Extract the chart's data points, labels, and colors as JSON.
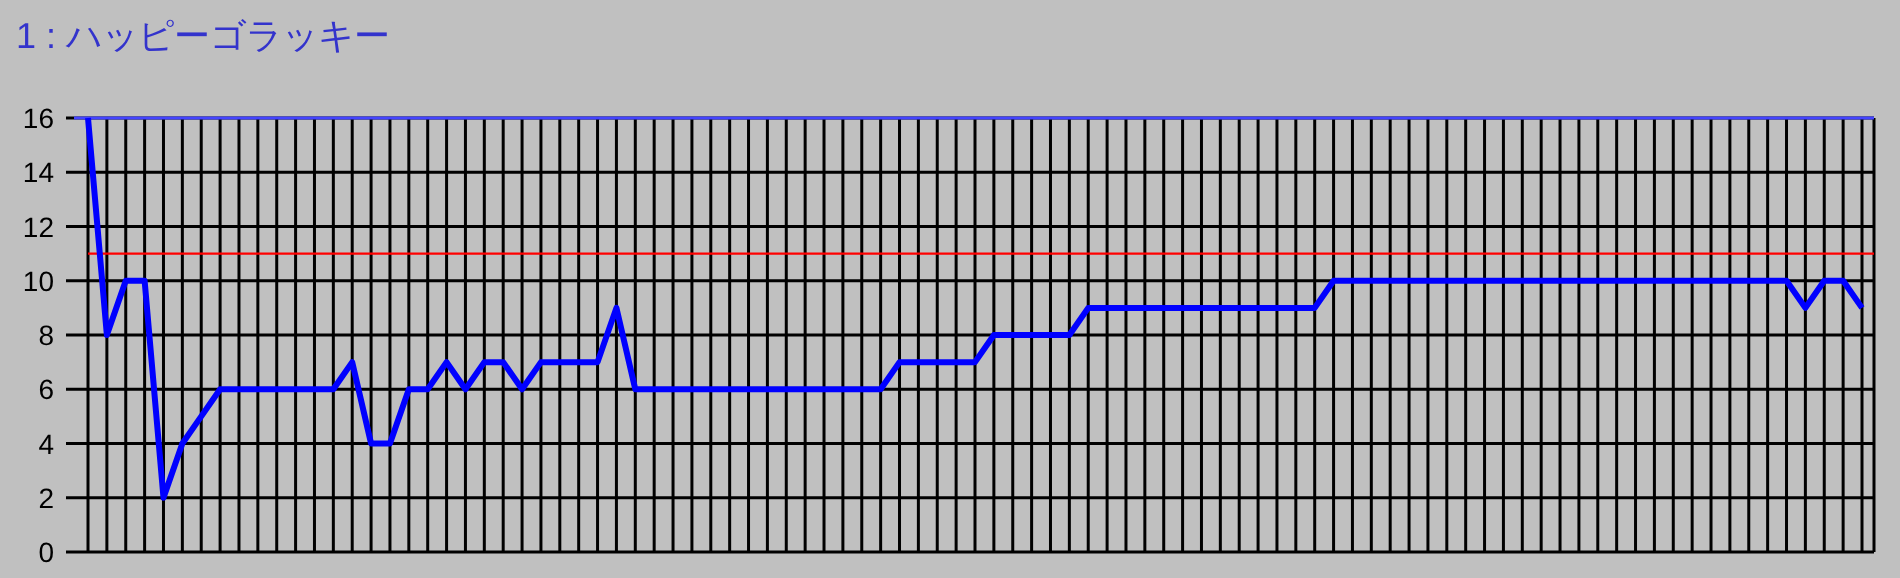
{
  "chart_data": {
    "type": "line",
    "title": "1 : ハッピーゴラッキー",
    "categories": [
      null,
      null,
      null,
      null,
      null,
      null,
      null,
      null,
      null,
      null,
      null,
      null,
      null,
      null,
      null,
      null,
      null,
      null,
      null,
      null,
      null,
      null,
      null,
      null,
      null,
      null,
      null,
      null,
      null,
      null,
      null,
      null,
      null,
      null,
      null,
      null,
      null,
      null,
      null,
      null,
      null,
      null,
      null,
      null,
      null,
      null,
      null,
      null,
      null,
      null,
      null,
      null,
      null,
      null,
      null,
      null,
      null,
      null,
      null,
      null,
      null,
      null,
      null,
      null,
      null,
      null,
      null,
      null,
      null,
      null,
      null,
      null,
      null,
      null,
      null,
      null,
      null,
      null,
      null,
      null,
      null,
      null,
      null,
      null,
      null,
      null,
      null,
      null,
      null,
      null,
      null,
      null,
      null,
      null,
      null
    ],
    "series": [
      {
        "color": "#0000ff",
        "values": [
          16,
          8,
          10,
          10,
          2,
          4,
          5,
          6,
          6,
          6,
          6,
          6,
          6,
          6,
          7,
          4,
          4,
          6,
          6,
          7,
          6,
          7,
          7,
          6,
          7,
          7,
          7,
          7,
          9,
          6,
          6,
          6,
          6,
          6,
          6,
          6,
          6,
          6,
          6,
          6,
          6,
          6,
          6,
          7,
          7,
          7,
          7,
          7,
          8,
          8,
          8,
          8,
          8,
          9,
          9,
          9,
          9,
          9,
          9,
          9,
          9,
          9,
          9,
          9,
          9,
          9,
          10,
          10,
          10,
          10,
          10,
          10,
          10,
          10,
          10,
          10,
          10,
          10,
          10,
          10,
          10,
          10,
          10,
          10,
          10,
          10,
          10,
          10,
          10,
          10,
          10,
          9,
          10,
          10,
          9
        ]
      }
    ],
    "ylim": [
      0,
      16
    ],
    "yticks": [
      0,
      2,
      4,
      6,
      8,
      10,
      12,
      14,
      16
    ],
    "grid": true,
    "marker": "none",
    "line_style": "solid",
    "ref_lines": [
      {
        "axis": "y",
        "value": 11,
        "color": "#ff0000"
      }
    ]
  }
}
